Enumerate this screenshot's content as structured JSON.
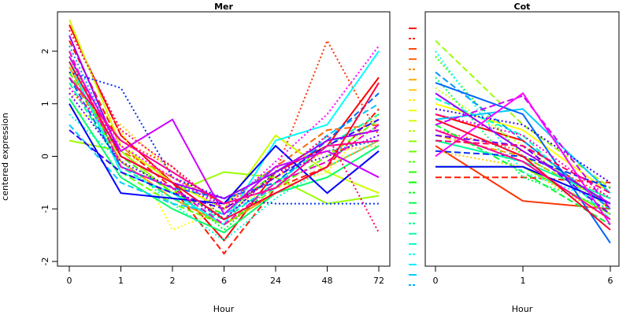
{
  "chart_data": [
    {
      "type": "line",
      "title": "Mer",
      "xlabel": "Hour",
      "ylabel": "centered expression",
      "categories": [
        "0",
        "1",
        "2",
        "6",
        "24",
        "48",
        "72"
      ],
      "yticks": [
        -2,
        -1,
        0,
        1,
        2
      ],
      "ylim": [
        -2.0,
        2.6
      ],
      "grid": false,
      "series": [
        {
          "color": "#ff0000",
          "dash": "solid",
          "values": [
            2.5,
            0.4,
            -0.5,
            -1.6,
            -0.3,
            0.2,
            1.5
          ]
        },
        {
          "color": "#ff1a00",
          "dash": "dashed",
          "values": [
            2.2,
            0.2,
            -0.6,
            -1.85,
            -0.6,
            -0.2,
            0.9
          ]
        },
        {
          "color": "#ff3300",
          "dash": "dotted",
          "values": [
            1.3,
            0.3,
            -0.2,
            -1.2,
            -0.3,
            2.2,
            0.4
          ]
        },
        {
          "color": "#ff6600",
          "dash": "dashed",
          "values": [
            1.5,
            0.1,
            -0.4,
            -0.9,
            -0.2,
            0.5,
            0.6
          ]
        },
        {
          "color": "#ff9900",
          "dash": "solid",
          "values": [
            1.7,
            -0.1,
            -0.8,
            -1.3,
            -0.7,
            -0.2,
            0.3
          ]
        },
        {
          "color": "#ffcc00",
          "dash": "dotted",
          "values": [
            1.2,
            0.6,
            -0.3,
            -0.9,
            -0.4,
            0.1,
            0.2
          ]
        },
        {
          "color": "#ffff00",
          "dash": "dotted",
          "values": [
            0.9,
            0.5,
            -1.4,
            -1.0,
            -0.6,
            -0.3,
            0.8
          ]
        },
        {
          "color": "#ccff00",
          "dash": "solid",
          "values": [
            2.6,
            0.2,
            -0.5,
            -1.0,
            0.4,
            -0.3,
            -0.7
          ]
        },
        {
          "color": "#99ff00",
          "dash": "solid",
          "values": [
            0.3,
            0.1,
            -0.7,
            -0.3,
            -0.4,
            -0.9,
            -0.75
          ]
        },
        {
          "color": "#66ff00",
          "dash": "dashed",
          "values": [
            2.0,
            -0.3,
            -0.9,
            -1.3,
            -0.6,
            0.0,
            0.7
          ]
        },
        {
          "color": "#33ff00",
          "dash": "dashed",
          "values": [
            1.6,
            0.0,
            -0.7,
            -1.1,
            -0.3,
            0.3,
            0.5
          ]
        },
        {
          "color": "#00ff33",
          "dash": "dotted",
          "values": [
            1.9,
            -0.2,
            -0.6,
            -1.4,
            -0.5,
            -0.1,
            0.6
          ]
        },
        {
          "color": "#00ff66",
          "dash": "solid",
          "values": [
            1.1,
            -0.4,
            -1.0,
            -1.45,
            -0.7,
            -0.4,
            0.2
          ]
        },
        {
          "color": "#00ff99",
          "dash": "dashed",
          "values": [
            1.4,
            -0.2,
            -0.8,
            -1.2,
            -0.5,
            0.2,
            0.8
          ]
        },
        {
          "color": "#00ffcc",
          "dash": "dotted",
          "values": [
            0.8,
            -0.1,
            -0.9,
            -1.6,
            -0.8,
            -0.2,
            0.3
          ]
        },
        {
          "color": "#00ffff",
          "dash": "solid",
          "values": [
            1.8,
            -0.3,
            -0.7,
            -1.3,
            0.3,
            0.6,
            2.0
          ]
        },
        {
          "color": "#00ccff",
          "dash": "dashed",
          "values": [
            0.6,
            -0.5,
            -0.9,
            -1.1,
            -0.6,
            0.4,
            1.0
          ]
        },
        {
          "color": "#0099ff",
          "dash": "dotted",
          "values": [
            2.1,
            0.0,
            -0.5,
            -0.9,
            -0.2,
            0.1,
            0.3
          ]
        },
        {
          "color": "#0066ff",
          "dash": "dashed",
          "values": [
            1.5,
            -0.2,
            -0.6,
            -0.8,
            -0.5,
            0.3,
            1.2
          ]
        },
        {
          "color": "#0033ff",
          "dash": "dotted",
          "values": [
            1.6,
            1.3,
            -0.4,
            -0.8,
            -0.9,
            -0.9,
            -0.9
          ]
        },
        {
          "color": "#0000ff",
          "dash": "solid",
          "values": [
            1.0,
            -0.7,
            -0.8,
            -0.9,
            0.2,
            -0.7,
            0.1
          ]
        },
        {
          "color": "#3300ff",
          "dash": "dashed",
          "values": [
            0.5,
            -0.3,
            -0.7,
            -1.0,
            -0.4,
            0.2,
            0.7
          ]
        },
        {
          "color": "#6600ff",
          "dash": "dotted",
          "values": [
            1.2,
            -0.1,
            -0.6,
            -1.2,
            -0.3,
            0.0,
            0.4
          ]
        },
        {
          "color": "#9900ff",
          "dash": "solid",
          "values": [
            2.3,
            0.0,
            -0.5,
            -0.8,
            -0.3,
            0.3,
            0.5
          ]
        },
        {
          "color": "#cc00ff",
          "dash": "solid",
          "values": [
            1.9,
            0.1,
            0.7,
            -1.1,
            -0.2,
            0.1,
            -0.4
          ]
        },
        {
          "color": "#ff00ff",
          "dash": "dotted",
          "values": [
            1.3,
            0.2,
            -0.4,
            -1.0,
            -0.1,
            0.8,
            2.1
          ]
        },
        {
          "color": "#ff00cc",
          "dash": "dashed",
          "values": [
            2.0,
            -0.2,
            -0.6,
            -1.3,
            -0.5,
            -0.1,
            0.6
          ]
        },
        {
          "color": "#ff0099",
          "dash": "solid",
          "values": [
            1.5,
            0.3,
            -0.3,
            -0.9,
            -0.6,
            0.2,
            0.3
          ]
        },
        {
          "color": "#ff0066",
          "dash": "dotted",
          "values": [
            2.4,
            0.5,
            -0.2,
            -1.0,
            -0.4,
            0.4,
            -1.45
          ]
        },
        {
          "color": "#ff0033",
          "dash": "solid",
          "values": [
            1.8,
            0.0,
            -0.5,
            -1.2,
            -0.7,
            -0.2,
            1.4
          ]
        }
      ]
    },
    {
      "type": "line",
      "title": "Cot",
      "xlabel": "Hour",
      "ylabel": "",
      "categories": [
        "0",
        "1",
        "6"
      ],
      "ylim": [
        -2.0,
        2.6
      ],
      "grid": false,
      "series": [
        {
          "color": "#ff0000",
          "dash": "solid",
          "values": [
            0.8,
            0.3,
            -1.0
          ]
        },
        {
          "color": "#ff1a00",
          "dash": "dashed",
          "values": [
            -0.4,
            -0.4,
            -0.5
          ]
        },
        {
          "color": "#ff3300",
          "dash": "solid",
          "values": [
            0.2,
            -0.85,
            -1.0
          ]
        },
        {
          "color": "#ff6600",
          "dash": "dotted",
          "values": [
            0.5,
            0.1,
            -0.8
          ]
        },
        {
          "color": "#ff9900",
          "dash": "dashed",
          "values": [
            0.4,
            0.0,
            -0.9
          ]
        },
        {
          "color": "#ffcc00",
          "dash": "dotted",
          "values": [
            0.1,
            -0.2,
            -1.2
          ]
        },
        {
          "color": "#ffff00",
          "dash": "solid",
          "values": [
            1.0,
            0.5,
            -0.7
          ]
        },
        {
          "color": "#ccff00",
          "dash": "dotted",
          "values": [
            1.3,
            0.2,
            -1.0
          ]
        },
        {
          "color": "#99ff00",
          "dash": "dashed",
          "values": [
            2.2,
            0.6,
            -0.6
          ]
        },
        {
          "color": "#66ff00",
          "dash": "solid",
          "values": [
            -0.2,
            -0.2,
            -1.1
          ]
        },
        {
          "color": "#33ff00",
          "dash": "dotted",
          "values": [
            1.9,
            0.0,
            -0.9
          ]
        },
        {
          "color": "#00ff33",
          "dash": "dashed",
          "values": [
            0.6,
            -0.3,
            -1.3
          ]
        },
        {
          "color": "#00ff66",
          "dash": "dotted",
          "values": [
            1.5,
            -0.4,
            -1.0
          ]
        },
        {
          "color": "#00ff99",
          "dash": "solid",
          "values": [
            0.3,
            -0.1,
            -0.8
          ]
        },
        {
          "color": "#00ffcc",
          "dash": "dashed",
          "values": [
            1.1,
            0.4,
            -1.2
          ]
        },
        {
          "color": "#00ffff",
          "dash": "dotted",
          "values": [
            2.0,
            -0.3,
            -0.9
          ]
        },
        {
          "color": "#00ccff",
          "dash": "solid",
          "values": [
            0.7,
            0.9,
            -0.7
          ]
        },
        {
          "color": "#0099ff",
          "dash": "dashed",
          "values": [
            1.6,
            0.3,
            -1.0
          ]
        },
        {
          "color": "#0066ff",
          "dash": "solid",
          "values": [
            1.4,
            0.8,
            -1.65
          ]
        },
        {
          "color": "#0033ff",
          "dash": "dashed",
          "values": [
            0.1,
            0.0,
            -0.6
          ]
        },
        {
          "color": "#0000ff",
          "dash": "solid",
          "values": [
            -0.2,
            -0.2,
            -0.9
          ]
        },
        {
          "color": "#3300ff",
          "dash": "dotted",
          "values": [
            0.9,
            0.6,
            -0.5
          ]
        },
        {
          "color": "#6600ff",
          "dash": "dashed",
          "values": [
            0.4,
            0.2,
            -1.1
          ]
        },
        {
          "color": "#9900ff",
          "dash": "solid",
          "values": [
            1.2,
            0.1,
            -0.9
          ]
        },
        {
          "color": "#cc00ff",
          "dash": "dashed",
          "values": [
            0.6,
            1.15,
            -1.0
          ]
        },
        {
          "color": "#ff00ff",
          "dash": "solid",
          "values": [
            0.0,
            1.2,
            -1.3
          ]
        },
        {
          "color": "#ff00cc",
          "dash": "dotted",
          "values": [
            0.8,
            0.4,
            -0.8
          ]
        },
        {
          "color": "#ff0099",
          "dash": "solid",
          "values": [
            0.5,
            -0.1,
            -1.2
          ]
        },
        {
          "color": "#ff0066",
          "dash": "dashed",
          "values": [
            0.3,
            0.2,
            -0.7
          ]
        },
        {
          "color": "#ff0033",
          "dash": "solid",
          "values": [
            0.7,
            0.0,
            -1.4
          ]
        }
      ]
    }
  ],
  "legend": {
    "placement": "between-panels",
    "swatches": [
      "#ff0000",
      "#ff2200",
      "#ff4400",
      "#ff6600",
      "#ff8800",
      "#ffaa00",
      "#ffcc00",
      "#ffee00",
      "#eeff00",
      "#ccff00",
      "#aaff00",
      "#88ff00",
      "#66ff00",
      "#44ff00",
      "#22ff00",
      "#00ff00",
      "#00ff22",
      "#00ff44",
      "#00ff66",
      "#00ff88",
      "#00ffaa",
      "#00ffcc",
      "#00ffee",
      "#00eeff",
      "#00ccff",
      "#00aaff"
    ]
  }
}
